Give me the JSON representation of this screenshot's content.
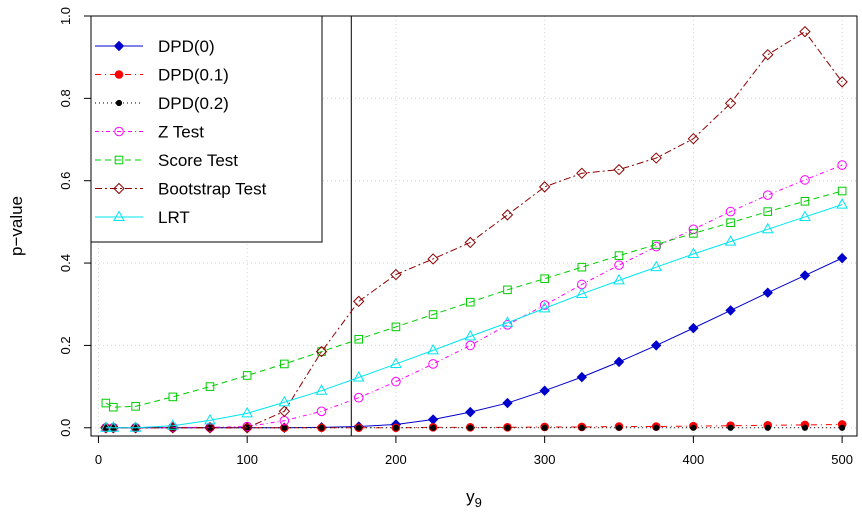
{
  "chart_data": {
    "type": "line",
    "title": "",
    "xlabel": "y",
    "xlabel_subscript": "9",
    "ylabel": "p−value",
    "xlim": [
      -5,
      510
    ],
    "ylim": [
      -0.02,
      1.0
    ],
    "x_ticks": [
      0,
      100,
      200,
      300,
      400,
      500
    ],
    "y_ticks": [
      0.0,
      0.2,
      0.4,
      0.6,
      0.8,
      1.0
    ],
    "x_tick_labels": [
      "0",
      "100",
      "200",
      "300",
      "400",
      "500"
    ],
    "y_tick_labels": [
      "0.0",
      "0.2",
      "0.4",
      "0.6",
      "0.8",
      "1.0"
    ],
    "grid": true,
    "vline_x": 170,
    "legend_position": "top-left",
    "x": [
      5,
      10,
      25,
      50,
      75,
      100,
      125,
      150,
      175,
      200,
      225,
      250,
      275,
      300,
      325,
      350,
      375,
      400,
      425,
      450,
      475,
      500
    ],
    "series": [
      {
        "name": "DPD(0)",
        "color": "#0000cd",
        "marker": "diamond-filled",
        "dash": "solid",
        "values": [
          0,
          0,
          0,
          0,
          0,
          0,
          0,
          0.001,
          0.003,
          0.008,
          0.02,
          0.038,
          0.06,
          0.09,
          0.123,
          0.16,
          0.2,
          0.242,
          0.285,
          0.328,
          0.37,
          0.412
        ]
      },
      {
        "name": "DPD(0.1)",
        "color": "#ff0000",
        "marker": "circle-filled",
        "dash": "6,4,1,4",
        "values": [
          0,
          0,
          0,
          0,
          0,
          0,
          0,
          0,
          0,
          0,
          0.001,
          0.001,
          0.001,
          0.002,
          0.002,
          0.003,
          0.003,
          0.004,
          0.005,
          0.006,
          0.007,
          0.008
        ]
      },
      {
        "name": "DPD(0.2)",
        "color": "#000000",
        "marker": "circle-small",
        "dash": "1,3",
        "values": [
          0,
          0,
          0,
          0,
          0,
          0,
          0,
          0,
          0,
          0,
          0,
          0,
          0,
          0,
          0,
          0,
          0,
          0,
          0,
          0,
          0,
          0
        ]
      },
      {
        "name": "Z Test",
        "color": "#ff00ff",
        "marker": "circle-open",
        "dash": "4,3,1,3",
        "values": [
          0,
          0,
          0,
          0.001,
          0.001,
          0.003,
          0.017,
          0.04,
          0.073,
          0.112,
          0.155,
          0.2,
          0.25,
          0.298,
          0.348,
          0.395,
          0.44,
          0.482,
          0.525,
          0.565,
          0.602,
          0.638
        ]
      },
      {
        "name": "Score Test",
        "color": "#00cc00",
        "marker": "square-open",
        "dash": "6,4",
        "values": [
          0.06,
          0.05,
          0.052,
          0.075,
          0.1,
          0.127,
          0.155,
          0.185,
          0.215,
          0.245,
          0.275,
          0.305,
          0.335,
          0.362,
          0.39,
          0.418,
          0.445,
          0.472,
          0.498,
          0.525,
          0.55,
          0.575
        ]
      },
      {
        "name": "Bootstrap Test",
        "color": "#8b0000",
        "marker": "diamond-open",
        "dash": "7,3,2,3",
        "values": [
          0,
          0,
          0,
          0,
          0,
          0,
          0.04,
          0.185,
          0.307,
          0.372,
          0.41,
          0.45,
          0.517,
          0.585,
          0.618,
          0.627,
          0.655,
          0.702,
          0.788,
          0.906,
          0.962,
          0.84
        ]
      },
      {
        "name": "LRT",
        "color": "#00e5ee",
        "marker": "triangle-open",
        "dash": "solid",
        "values": [
          0,
          0,
          0,
          0.005,
          0.018,
          0.035,
          0.062,
          0.09,
          0.122,
          0.155,
          0.188,
          0.222,
          0.255,
          0.29,
          0.325,
          0.358,
          0.39,
          0.422,
          0.452,
          0.482,
          0.512,
          0.542
        ]
      }
    ]
  }
}
